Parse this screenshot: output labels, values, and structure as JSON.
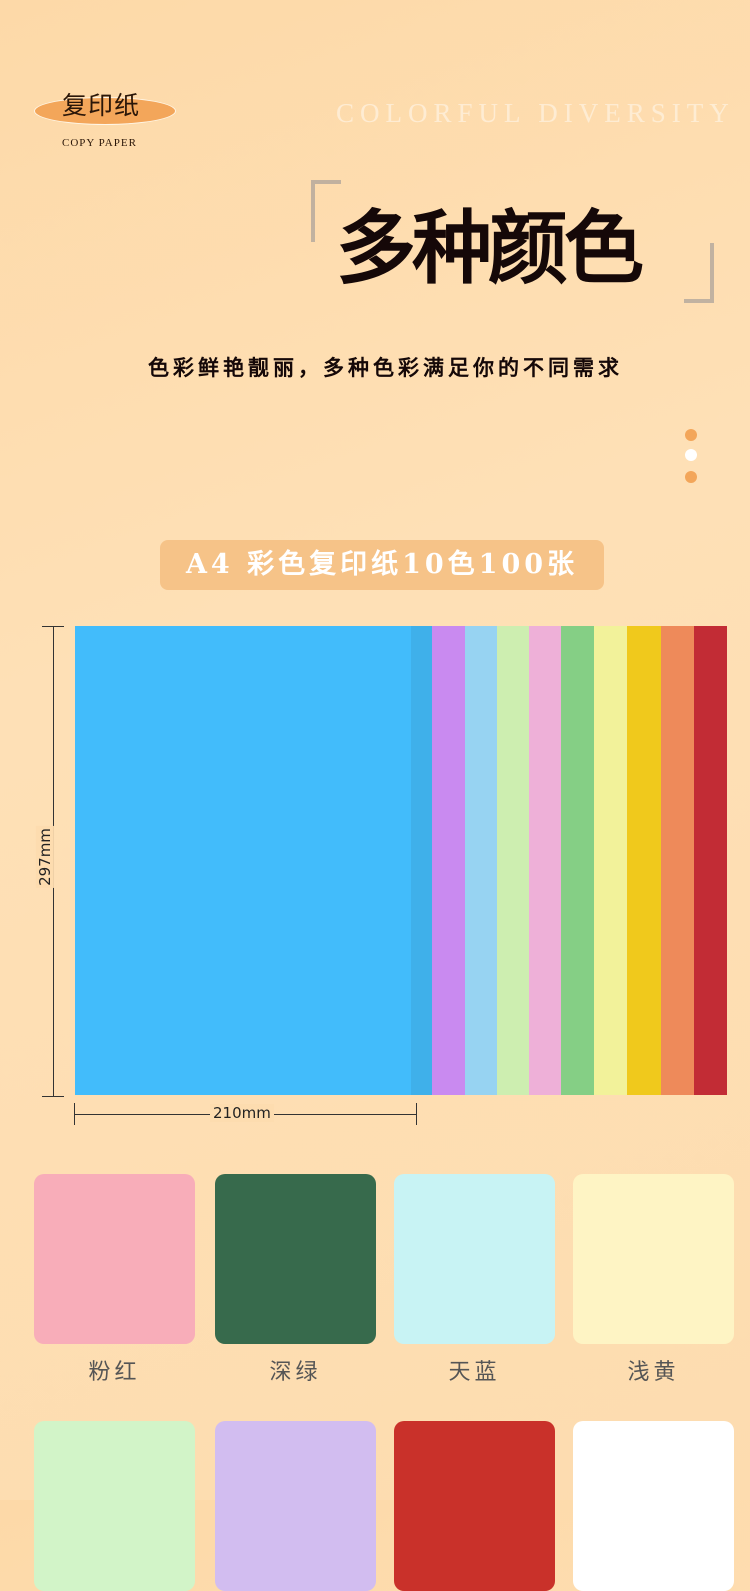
{
  "logo": {
    "cn": "复印纸",
    "en": "COPY PAPER"
  },
  "header": {
    "en_title": "COLORFUL DIVERSITY",
    "title": "多种颜色",
    "subtitle": "色彩鲜艳靓丽，多种色彩满足你的不同需求"
  },
  "product_label": "A4 彩色复印纸10色100张",
  "dimensions": {
    "height": "297mm",
    "width": "210mm"
  },
  "stack_colors": [
    "#3fb0ea",
    "#c98af0",
    "#97d3f2",
    "#cdeeb0",
    "#eeb0d8",
    "#85cf85",
    "#f2f29a",
    "#f0c91c",
    "#ee8a5a",
    "#c22c35"
  ],
  "swatches": [
    {
      "label": "粉红",
      "color": "#f8adb9"
    },
    {
      "label": "深绿",
      "color": "#376a4c"
    },
    {
      "label": "天蓝",
      "color": "#c8f3f4"
    },
    {
      "label": "浅黄",
      "color": "#fef4c4"
    },
    {
      "label": "",
      "color": "#d2f4c8"
    },
    {
      "label": "",
      "color": "#d2bdf0"
    },
    {
      "label": "",
      "color": "#c9312a"
    },
    {
      "label": "",
      "color": "#ffffff"
    }
  ]
}
